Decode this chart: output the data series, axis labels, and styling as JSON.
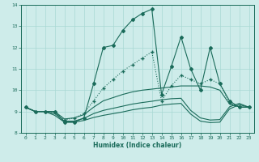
{
  "xlabel": "Humidex (Indice chaleur)",
  "bg_color": "#ceecea",
  "grid_color": "#a8d8d4",
  "line_color": "#1a6b5a",
  "xlim": [
    -0.5,
    23.5
  ],
  "ylim": [
    8,
    14
  ],
  "yticks": [
    8,
    9,
    10,
    11,
    12,
    13,
    14
  ],
  "xticks": [
    0,
    1,
    2,
    3,
    4,
    5,
    6,
    7,
    8,
    9,
    10,
    11,
    12,
    13,
    14,
    15,
    16,
    17,
    18,
    19,
    20,
    21,
    22,
    23
  ],
  "y_main": [
    9.2,
    9.0,
    9.0,
    9.0,
    8.5,
    8.5,
    8.7,
    10.3,
    12.0,
    12.1,
    12.8,
    13.3,
    13.6,
    13.8,
    9.8,
    11.1,
    12.5,
    11.0,
    10.0,
    12.0,
    10.3,
    9.5,
    9.2,
    9.2
  ],
  "y_slope": [
    9.2,
    9.0,
    9.0,
    9.0,
    8.6,
    8.7,
    8.9,
    9.5,
    10.1,
    10.5,
    10.9,
    11.2,
    11.5,
    11.8,
    9.5,
    10.2,
    10.7,
    10.5,
    10.3,
    10.5,
    10.3,
    9.4,
    9.2,
    9.2
  ],
  "y_upper": [
    9.2,
    9.0,
    9.0,
    9.0,
    8.65,
    8.7,
    8.85,
    9.2,
    9.5,
    9.65,
    9.8,
    9.92,
    10.0,
    10.05,
    10.1,
    10.15,
    10.2,
    10.2,
    10.2,
    10.15,
    10.0,
    9.35,
    9.22,
    9.2
  ],
  "y_mid": [
    9.2,
    9.0,
    9.0,
    8.9,
    8.55,
    8.55,
    8.68,
    8.9,
    9.05,
    9.15,
    9.25,
    9.35,
    9.42,
    9.48,
    9.55,
    9.6,
    9.62,
    9.05,
    8.7,
    8.6,
    8.62,
    9.22,
    9.38,
    9.2
  ],
  "y_lower": [
    9.2,
    9.0,
    9.0,
    8.82,
    8.5,
    8.5,
    8.58,
    8.72,
    8.82,
    8.9,
    8.98,
    9.08,
    9.15,
    9.2,
    9.3,
    9.35,
    9.38,
    8.88,
    8.55,
    8.48,
    8.5,
    9.12,
    9.32,
    9.2
  ],
  "dpi": 100
}
